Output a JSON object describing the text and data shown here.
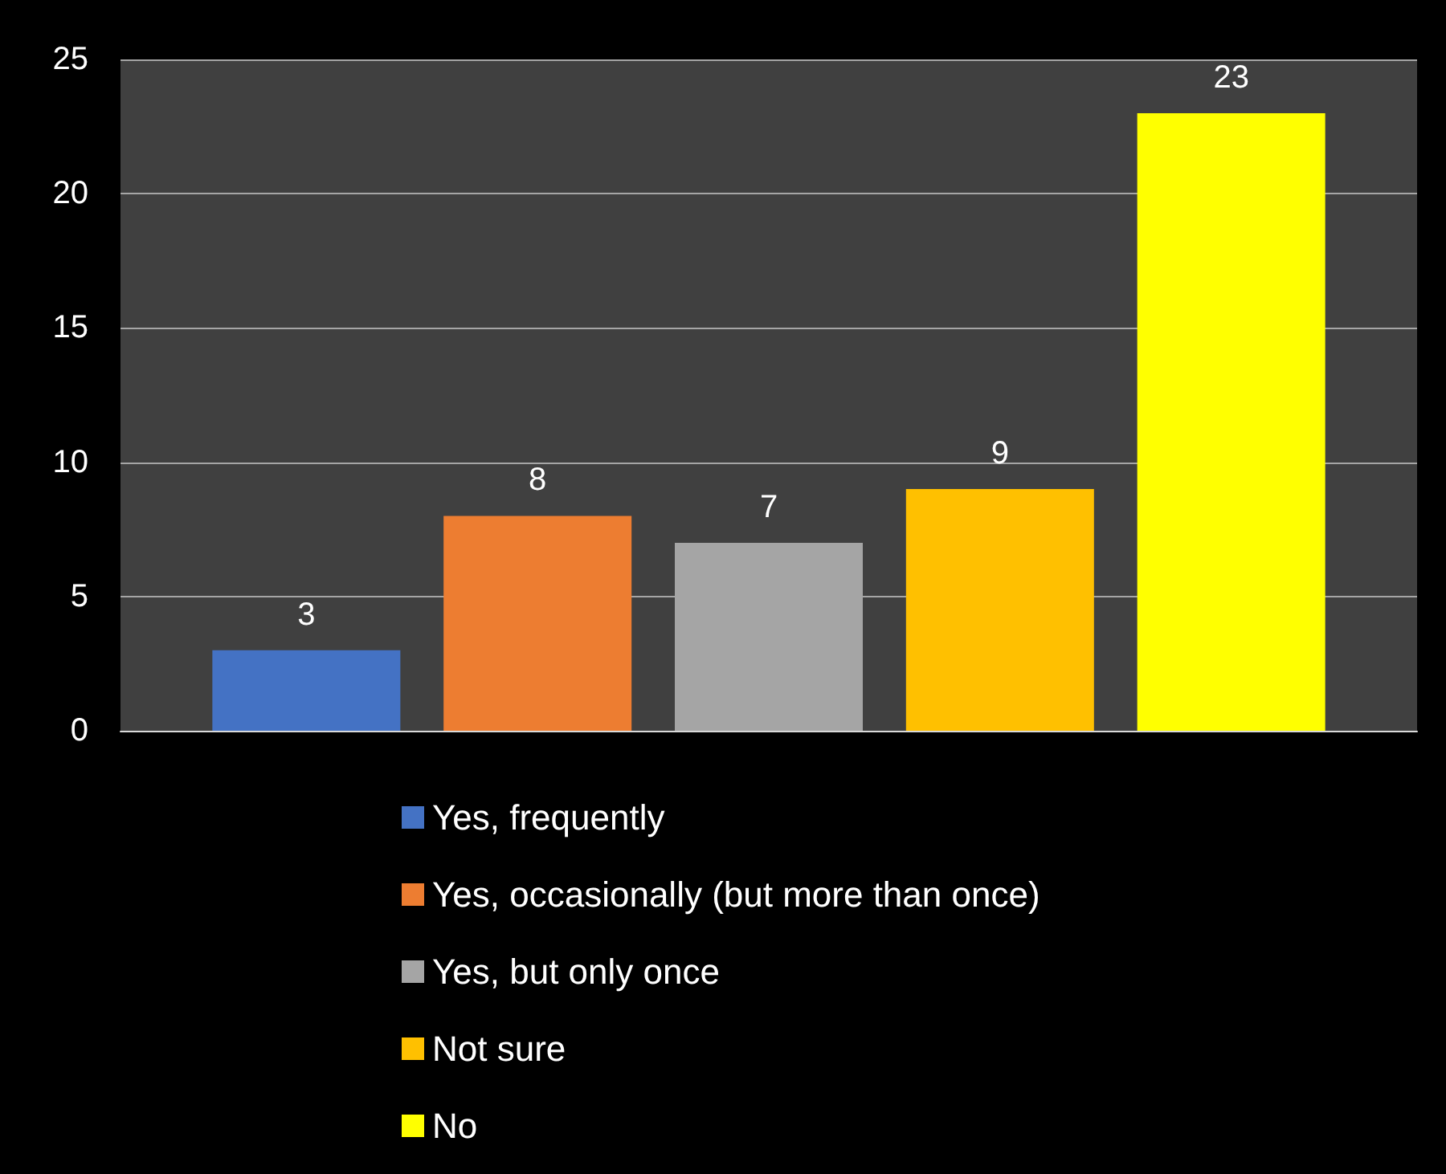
{
  "chart_data": {
    "type": "bar",
    "categories": [
      null
    ],
    "series": [
      {
        "name": "Yes, frequently",
        "color": "#4472c4",
        "values": [
          3
        ]
      },
      {
        "name": "Yes, occasionally (but more than once)",
        "color": "#ed7d31",
        "values": [
          8
        ]
      },
      {
        "name": "Yes, but only once",
        "color": "#a5a5a5",
        "values": [
          7
        ]
      },
      {
        "name": "Not sure",
        "color": "#ffc000",
        "values": [
          9
        ]
      },
      {
        "name": "No",
        "color": "#ffff00",
        "values": [
          23
        ]
      }
    ],
    "ylim": [
      0,
      25
    ],
    "yticks": [
      0,
      5,
      10,
      15,
      20,
      25
    ],
    "grid": "y",
    "legend": "bottom",
    "data_labels": true
  }
}
